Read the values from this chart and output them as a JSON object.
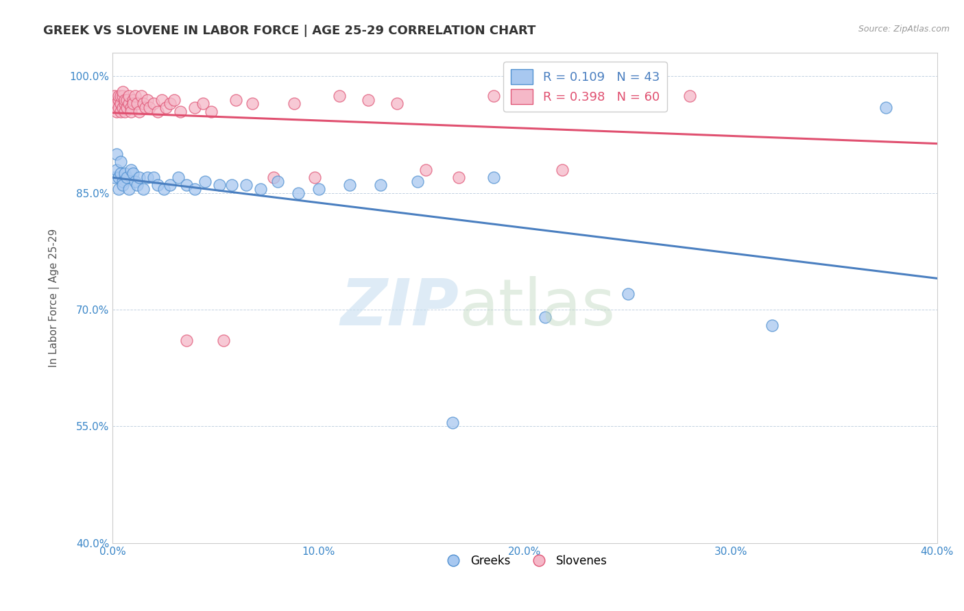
{
  "title": "GREEK VS SLOVENE IN LABOR FORCE | AGE 25-29 CORRELATION CHART",
  "source_text": "Source: ZipAtlas.com",
  "ylabel": "In Labor Force | Age 25-29",
  "xlim": [
    0.0,
    0.4
  ],
  "ylim": [
    0.4,
    1.03
  ],
  "xtick_labels": [
    "0.0%",
    "10.0%",
    "20.0%",
    "30.0%",
    "40.0%"
  ],
  "xtick_values": [
    0.0,
    0.1,
    0.2,
    0.3,
    0.4
  ],
  "ytick_labels": [
    "40.0%",
    "55.0%",
    "70.0%",
    "85.0%",
    "100.0%"
  ],
  "ytick_values": [
    0.4,
    0.55,
    0.7,
    0.85,
    1.0
  ],
  "greek_color": "#a8c8f0",
  "slovene_color": "#f5b8c8",
  "greek_edge_color": "#5090d0",
  "slovene_edge_color": "#e05878",
  "greek_line_color": "#4a7fc0",
  "slovene_line_color": "#e05070",
  "greek_R": 0.109,
  "greek_N": 43,
  "slovene_R": 0.398,
  "slovene_N": 60,
  "title_fontsize": 13,
  "axis_label_fontsize": 11,
  "tick_fontsize": 11,
  "legend_fontsize": 13,
  "greek_x": [
    0.001,
    0.002,
    0.002,
    0.003,
    0.003,
    0.004,
    0.004,
    0.005,
    0.005,
    0.006,
    0.007,
    0.008,
    0.009,
    0.01,
    0.011,
    0.012,
    0.013,
    0.015,
    0.017,
    0.02,
    0.022,
    0.025,
    0.028,
    0.032,
    0.036,
    0.04,
    0.045,
    0.052,
    0.058,
    0.065,
    0.072,
    0.08,
    0.09,
    0.1,
    0.115,
    0.13,
    0.148,
    0.165,
    0.185,
    0.21,
    0.25,
    0.32,
    0.375
  ],
  "greek_y": [
    0.87,
    0.88,
    0.9,
    0.855,
    0.87,
    0.875,
    0.89,
    0.865,
    0.86,
    0.875,
    0.87,
    0.855,
    0.88,
    0.875,
    0.865,
    0.86,
    0.87,
    0.855,
    0.87,
    0.87,
    0.86,
    0.855,
    0.86,
    0.87,
    0.86,
    0.855,
    0.865,
    0.86,
    0.86,
    0.86,
    0.855,
    0.865,
    0.85,
    0.855,
    0.86,
    0.86,
    0.865,
    0.555,
    0.87,
    0.69,
    0.72,
    0.68,
    0.96
  ],
  "slovene_x": [
    0.001,
    0.001,
    0.002,
    0.002,
    0.003,
    0.003,
    0.003,
    0.004,
    0.004,
    0.004,
    0.005,
    0.005,
    0.005,
    0.006,
    0.006,
    0.006,
    0.007,
    0.007,
    0.008,
    0.008,
    0.009,
    0.009,
    0.01,
    0.01,
    0.011,
    0.012,
    0.013,
    0.014,
    0.015,
    0.016,
    0.017,
    0.018,
    0.02,
    0.022,
    0.024,
    0.026,
    0.028,
    0.03,
    0.033,
    0.036,
    0.04,
    0.044,
    0.048,
    0.054,
    0.06,
    0.068,
    0.078,
    0.088,
    0.098,
    0.11,
    0.124,
    0.138,
    0.152,
    0.168,
    0.185,
    0.202,
    0.218,
    0.238,
    0.258,
    0.28
  ],
  "slovene_y": [
    0.96,
    0.975,
    0.965,
    0.955,
    0.97,
    0.96,
    0.975,
    0.965,
    0.975,
    0.955,
    0.96,
    0.975,
    0.98,
    0.965,
    0.955,
    0.97,
    0.96,
    0.97,
    0.965,
    0.975,
    0.96,
    0.955,
    0.97,
    0.965,
    0.975,
    0.965,
    0.955,
    0.975,
    0.965,
    0.96,
    0.97,
    0.96,
    0.965,
    0.955,
    0.97,
    0.96,
    0.965,
    0.97,
    0.955,
    0.66,
    0.96,
    0.965,
    0.955,
    0.66,
    0.97,
    0.965,
    0.87,
    0.965,
    0.87,
    0.975,
    0.97,
    0.965,
    0.88,
    0.87,
    0.975,
    0.97,
    0.88,
    0.965,
    0.97,
    0.975
  ]
}
